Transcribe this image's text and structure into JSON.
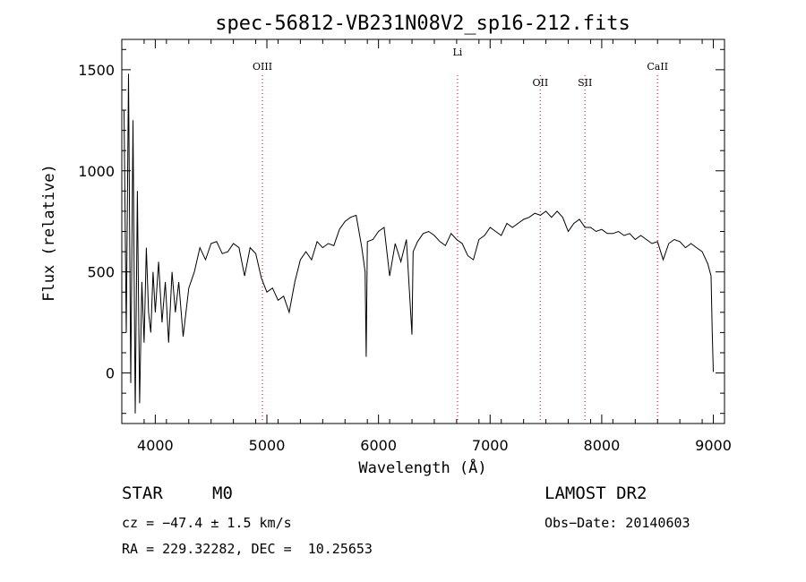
{
  "chart_data": {
    "type": "line",
    "title": "spec-56812-VB231N08V2_sp16-212.fits",
    "xlabel": "Wavelength (Å)",
    "ylabel": "Flux (relative)",
    "xlim": [
      3700,
      9100
    ],
    "ylim": [
      -250,
      1650
    ],
    "xticks": [
      4000,
      5000,
      6000,
      7000,
      8000,
      9000
    ],
    "yticks": [
      0,
      500,
      1000,
      1500
    ],
    "grid": false,
    "spectral_lines": [
      {
        "name": "OIII",
        "wavelength": 4960
      },
      {
        "name": "Li",
        "wavelength": 6708
      },
      {
        "name": "OII",
        "wavelength": 7450
      },
      {
        "name": "SII",
        "wavelength": 7850
      },
      {
        "name": "CaII",
        "wavelength": 8500
      }
    ],
    "spectrum": {
      "x": [
        3720,
        3740,
        3760,
        3780,
        3800,
        3820,
        3840,
        3860,
        3880,
        3900,
        3920,
        3940,
        3960,
        3980,
        4000,
        4030,
        4060,
        4090,
        4120,
        4150,
        4180,
        4210,
        4250,
        4300,
        4350,
        4400,
        4450,
        4500,
        4550,
        4600,
        4650,
        4700,
        4750,
        4800,
        4850,
        4900,
        4950,
        5000,
        5050,
        5100,
        5150,
        5200,
        5250,
        5300,
        5350,
        5400,
        5450,
        5500,
        5550,
        5600,
        5650,
        5700,
        5750,
        5800,
        5850,
        5880,
        5890,
        5900,
        5950,
        6000,
        6050,
        6100,
        6150,
        6200,
        6250,
        6300,
        6310,
        6350,
        6400,
        6450,
        6500,
        6550,
        6600,
        6650,
        6700,
        6750,
        6800,
        6850,
        6900,
        6950,
        7000,
        7050,
        7100,
        7150,
        7200,
        7250,
        7300,
        7350,
        7400,
        7450,
        7500,
        7550,
        7600,
        7650,
        7700,
        7750,
        7800,
        7850,
        7900,
        7950,
        8000,
        8050,
        8100,
        8150,
        8200,
        8250,
        8300,
        8350,
        8400,
        8450,
        8500,
        8550,
        8600,
        8650,
        8700,
        8750,
        8800,
        8850,
        8900,
        8950,
        8980,
        8990,
        9000
      ],
      "y": [
        1300,
        200,
        1480,
        -50,
        1250,
        -200,
        900,
        -150,
        450,
        150,
        620,
        300,
        200,
        500,
        300,
        550,
        250,
        450,
        150,
        500,
        300,
        450,
        180,
        420,
        500,
        620,
        560,
        640,
        650,
        590,
        600,
        640,
        620,
        480,
        620,
        590,
        470,
        400,
        420,
        360,
        380,
        300,
        450,
        560,
        600,
        560,
        650,
        620,
        640,
        630,
        710,
        750,
        770,
        780,
        620,
        500,
        80,
        650,
        660,
        700,
        720,
        480,
        640,
        550,
        660,
        190,
        600,
        650,
        690,
        700,
        680,
        650,
        630,
        690,
        660,
        640,
        580,
        560,
        660,
        680,
        720,
        700,
        680,
        740,
        720,
        740,
        760,
        770,
        790,
        780,
        800,
        770,
        800,
        770,
        700,
        740,
        760,
        720,
        720,
        700,
        710,
        690,
        690,
        700,
        680,
        690,
        660,
        680,
        660,
        640,
        650,
        560,
        640,
        660,
        650,
        620,
        640,
        620,
        600,
        540,
        480,
        200,
        5
      ]
    }
  },
  "info": {
    "object_class": "STAR",
    "subclass": "M0",
    "cz": "cz = −47.4 ± 1.5 km/s",
    "coords": "RA = 229.32282, DEC =  10.25653",
    "survey": "LAMOST DR2",
    "obs_date": "Obs−Date: 20140603"
  }
}
